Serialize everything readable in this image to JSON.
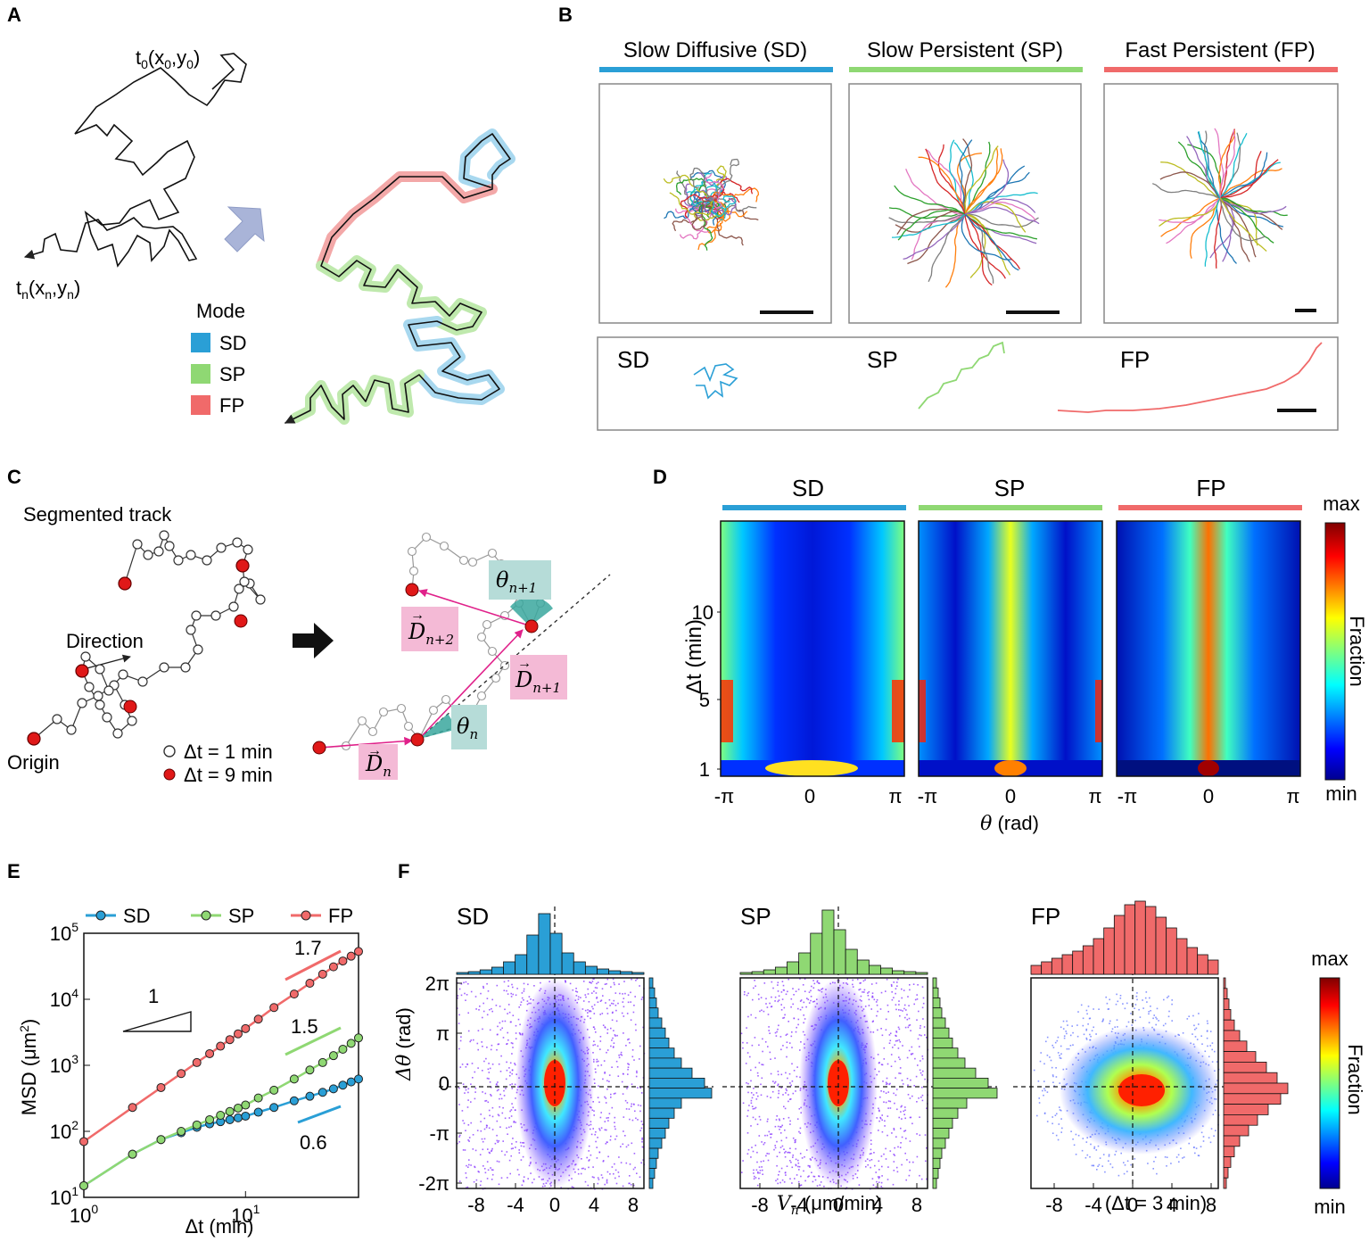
{
  "panels": {
    "A": {
      "letter": "A",
      "start_label": "t0(x0,y0)",
      "end_label": "tn(xn,yn)",
      "start_t": "t",
      "start_sub": "0",
      "start_x": "(x",
      "start_y": ",y",
      "start_close": ")",
      "end_t": "t",
      "end_sub": "n",
      "end_x": "(x",
      "end_y": ",y",
      "end_close": ")",
      "legend_title": "Mode",
      "legend": [
        {
          "label": "SD",
          "color": "#2a9fd6"
        },
        {
          "label": "SP",
          "color": "#8fd873"
        },
        {
          "label": "FP",
          "color": "#f06a6a"
        }
      ]
    },
    "B": {
      "letter": "B",
      "groups": [
        {
          "title": "Slow Diffusive (SD)",
          "color": "#2a9fd6",
          "short": "SD"
        },
        {
          "title": "Slow Persistent (SP)",
          "color": "#8fd873",
          "short": "SP"
        },
        {
          "title": "Fast Persistent (FP)",
          "color": "#f06a6a",
          "short": "FP"
        }
      ]
    },
    "C": {
      "letter": "C",
      "title": "Segmented track",
      "direction": "Direction",
      "origin": "Origin",
      "legend_open": "Δt = 1 min",
      "legend_filled": "Δt = 9 min",
      "theta_n": "θ",
      "theta_n_sub": "n",
      "theta_n1": "θ",
      "theta_n1_sub": "n+1",
      "d_n": "D",
      "d_n_sub": "n",
      "d_n1": "D",
      "d_n1_sub": "n+1",
      "d_n2": "D",
      "d_n2_sub": "n+2"
    },
    "D": {
      "letter": "D",
      "titles": [
        "SD",
        "SP",
        "FP"
      ],
      "title_colors": [
        "#2a9fd6",
        "#8fd873",
        "#f06a6a"
      ],
      "ylabel": "Δt (min)",
      "yticks": [
        "1",
        "5",
        "10"
      ],
      "xticks": [
        "-π",
        "0",
        "π"
      ],
      "xlabel_var": "θ",
      "xlabel_unit": " (rad)",
      "colorbar_max": "max",
      "colorbar_min": "min",
      "colorbar_label": "Fraction"
    },
    "E": {
      "letter": "E",
      "ylabel": "MSD (μm",
      "ylabel_sup": "2",
      "ylabel_close": ")",
      "xlabel": "Δt (min)",
      "slope_triangle": "1",
      "ytick_base": "10",
      "ytick_exps": [
        "1",
        "2",
        "3",
        "4",
        "5"
      ],
      "xtick_base": "10",
      "xtick_exps": [
        "0",
        "1"
      ]
    },
    "F": {
      "letter": "F",
      "titles": [
        "SD",
        "SP",
        "FP"
      ],
      "colors": [
        "#2a9fd6",
        "#8fd873",
        "#f06a6a"
      ],
      "ylabel_var": "Δθ",
      "ylabel_unit": " (rad)",
      "yticks": [
        "2π",
        "π",
        "0",
        "-π",
        "-2π"
      ],
      "xticks": [
        "-8",
        "-4",
        "0",
        "4",
        "8"
      ],
      "xlabel_var": "V",
      "xlabel_sub": "n",
      "xlabel_unit": " (μm/min)",
      "note": "(Δt = 3 min)",
      "colorbar_max": "max",
      "colorbar_min": "min",
      "colorbar_label": "Fraction"
    }
  },
  "chart_data": [
    {
      "type": "line",
      "title": "E",
      "xlabel": "Δt (min)",
      "ylabel": "MSD (μm2)",
      "xscale": "log",
      "yscale": "log",
      "xlim": [
        1,
        50
      ],
      "ylim": [
        10,
        100000
      ],
      "legend_position": "top",
      "x": [
        1,
        2,
        3,
        4,
        5,
        6,
        7,
        8,
        9,
        10,
        12,
        15,
        20,
        25,
        30,
        35,
        40,
        45,
        50
      ],
      "series": [
        {
          "name": "SD",
          "color": "#2a9fd6",
          "values": [
            15,
            45,
            75,
            95,
            115,
            130,
            140,
            150,
            160,
            170,
            195,
            230,
            290,
            340,
            390,
            440,
            500,
            560,
            620
          ]
        },
        {
          "name": "SP",
          "color": "#8fd873",
          "values": [
            15,
            45,
            75,
            100,
            125,
            150,
            175,
            200,
            225,
            250,
            320,
            420,
            620,
            850,
            1100,
            1400,
            1750,
            2150,
            2600
          ]
        },
        {
          "name": "FP",
          "color": "#f06a6a",
          "values": [
            70,
            230,
            460,
            750,
            1100,
            1500,
            1950,
            2450,
            3000,
            3600,
            5000,
            7500,
            12000,
            17500,
            24000,
            31000,
            38000,
            45000,
            53000
          ]
        }
      ],
      "annotations": [
        {
          "text": "1.7",
          "series": "FP"
        },
        {
          "text": "1.5",
          "series": "SP"
        },
        {
          "text": "0.6",
          "series": "SD"
        }
      ]
    }
  ]
}
